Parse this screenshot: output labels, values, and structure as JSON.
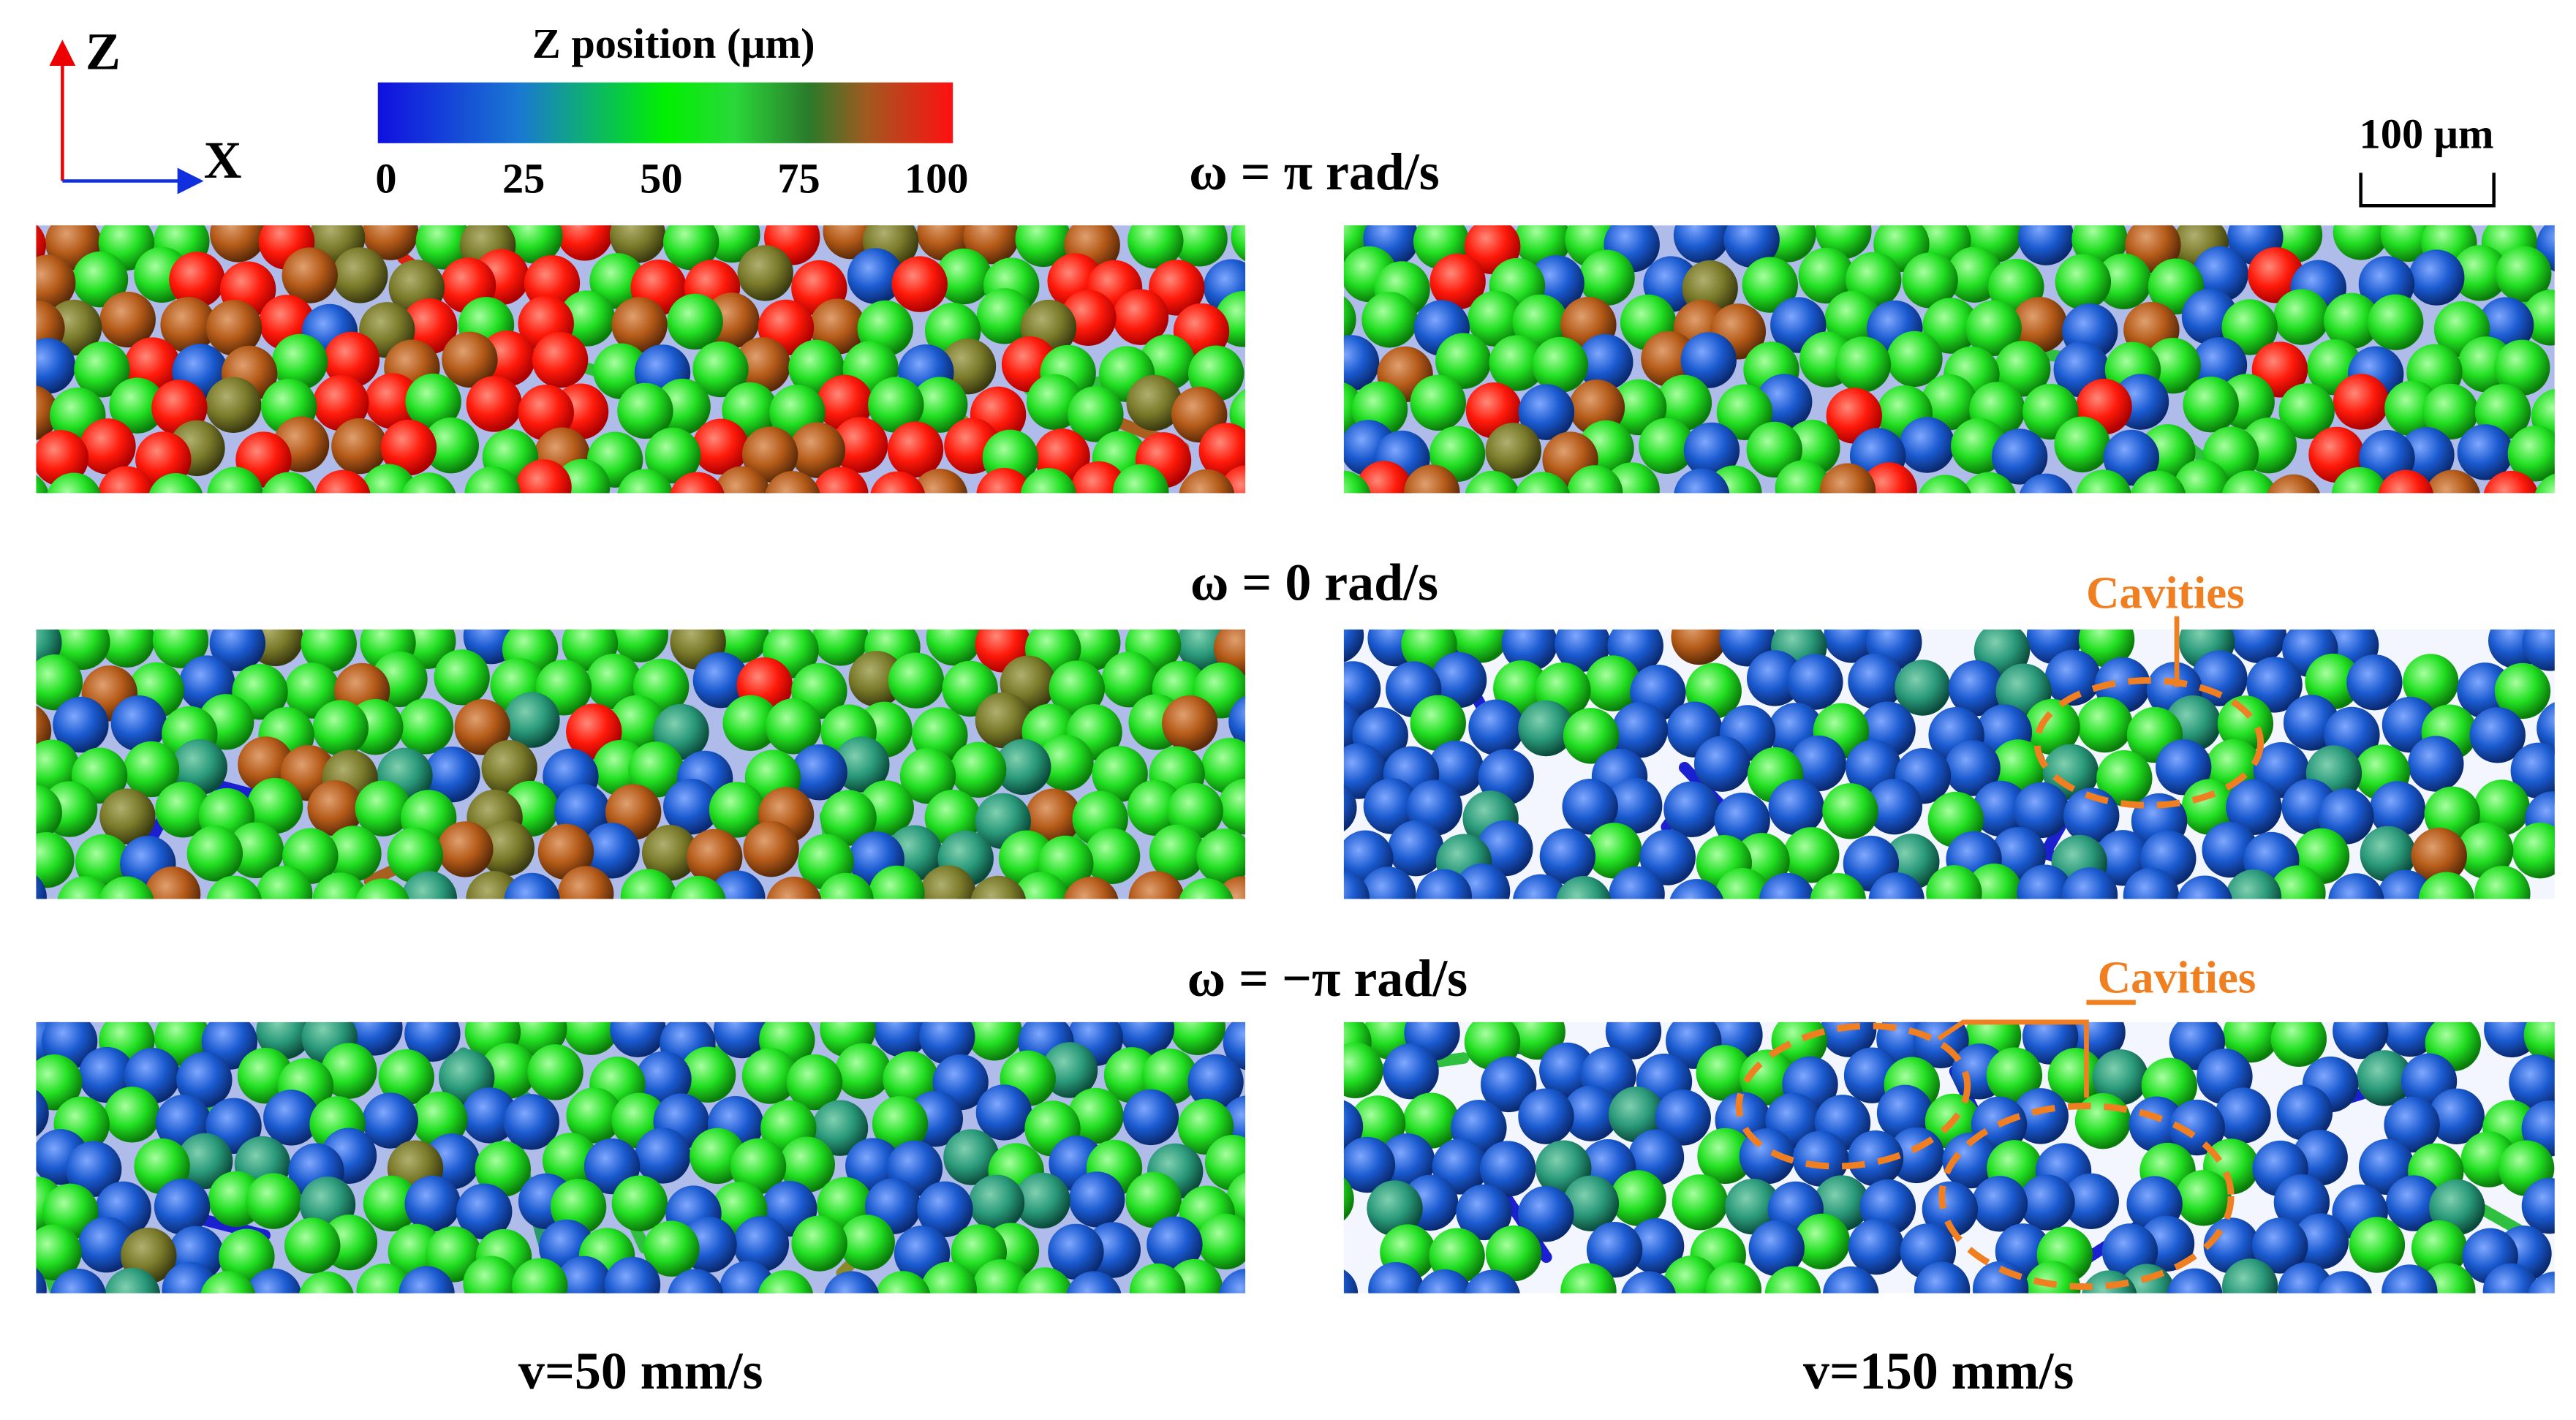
{
  "axes_icon": {
    "z_label": "Z",
    "x_label": "X"
  },
  "colorbar": {
    "title": "Z position (μm)",
    "ticks": [
      0,
      25,
      50,
      75,
      100
    ]
  },
  "scale_bar": {
    "label": "100 μm"
  },
  "rows": [
    {
      "label": "ω = π rad/s"
    },
    {
      "label": "ω = 0 rad/s"
    },
    {
      "label": "ω = −π rad/s"
    }
  ],
  "annotations": [
    {
      "label": "Cavities"
    },
    {
      "label": "Cavities"
    }
  ],
  "columns": [
    {
      "label": "v=50 mm/s"
    },
    {
      "label": "v=150 mm/s"
    }
  ]
}
